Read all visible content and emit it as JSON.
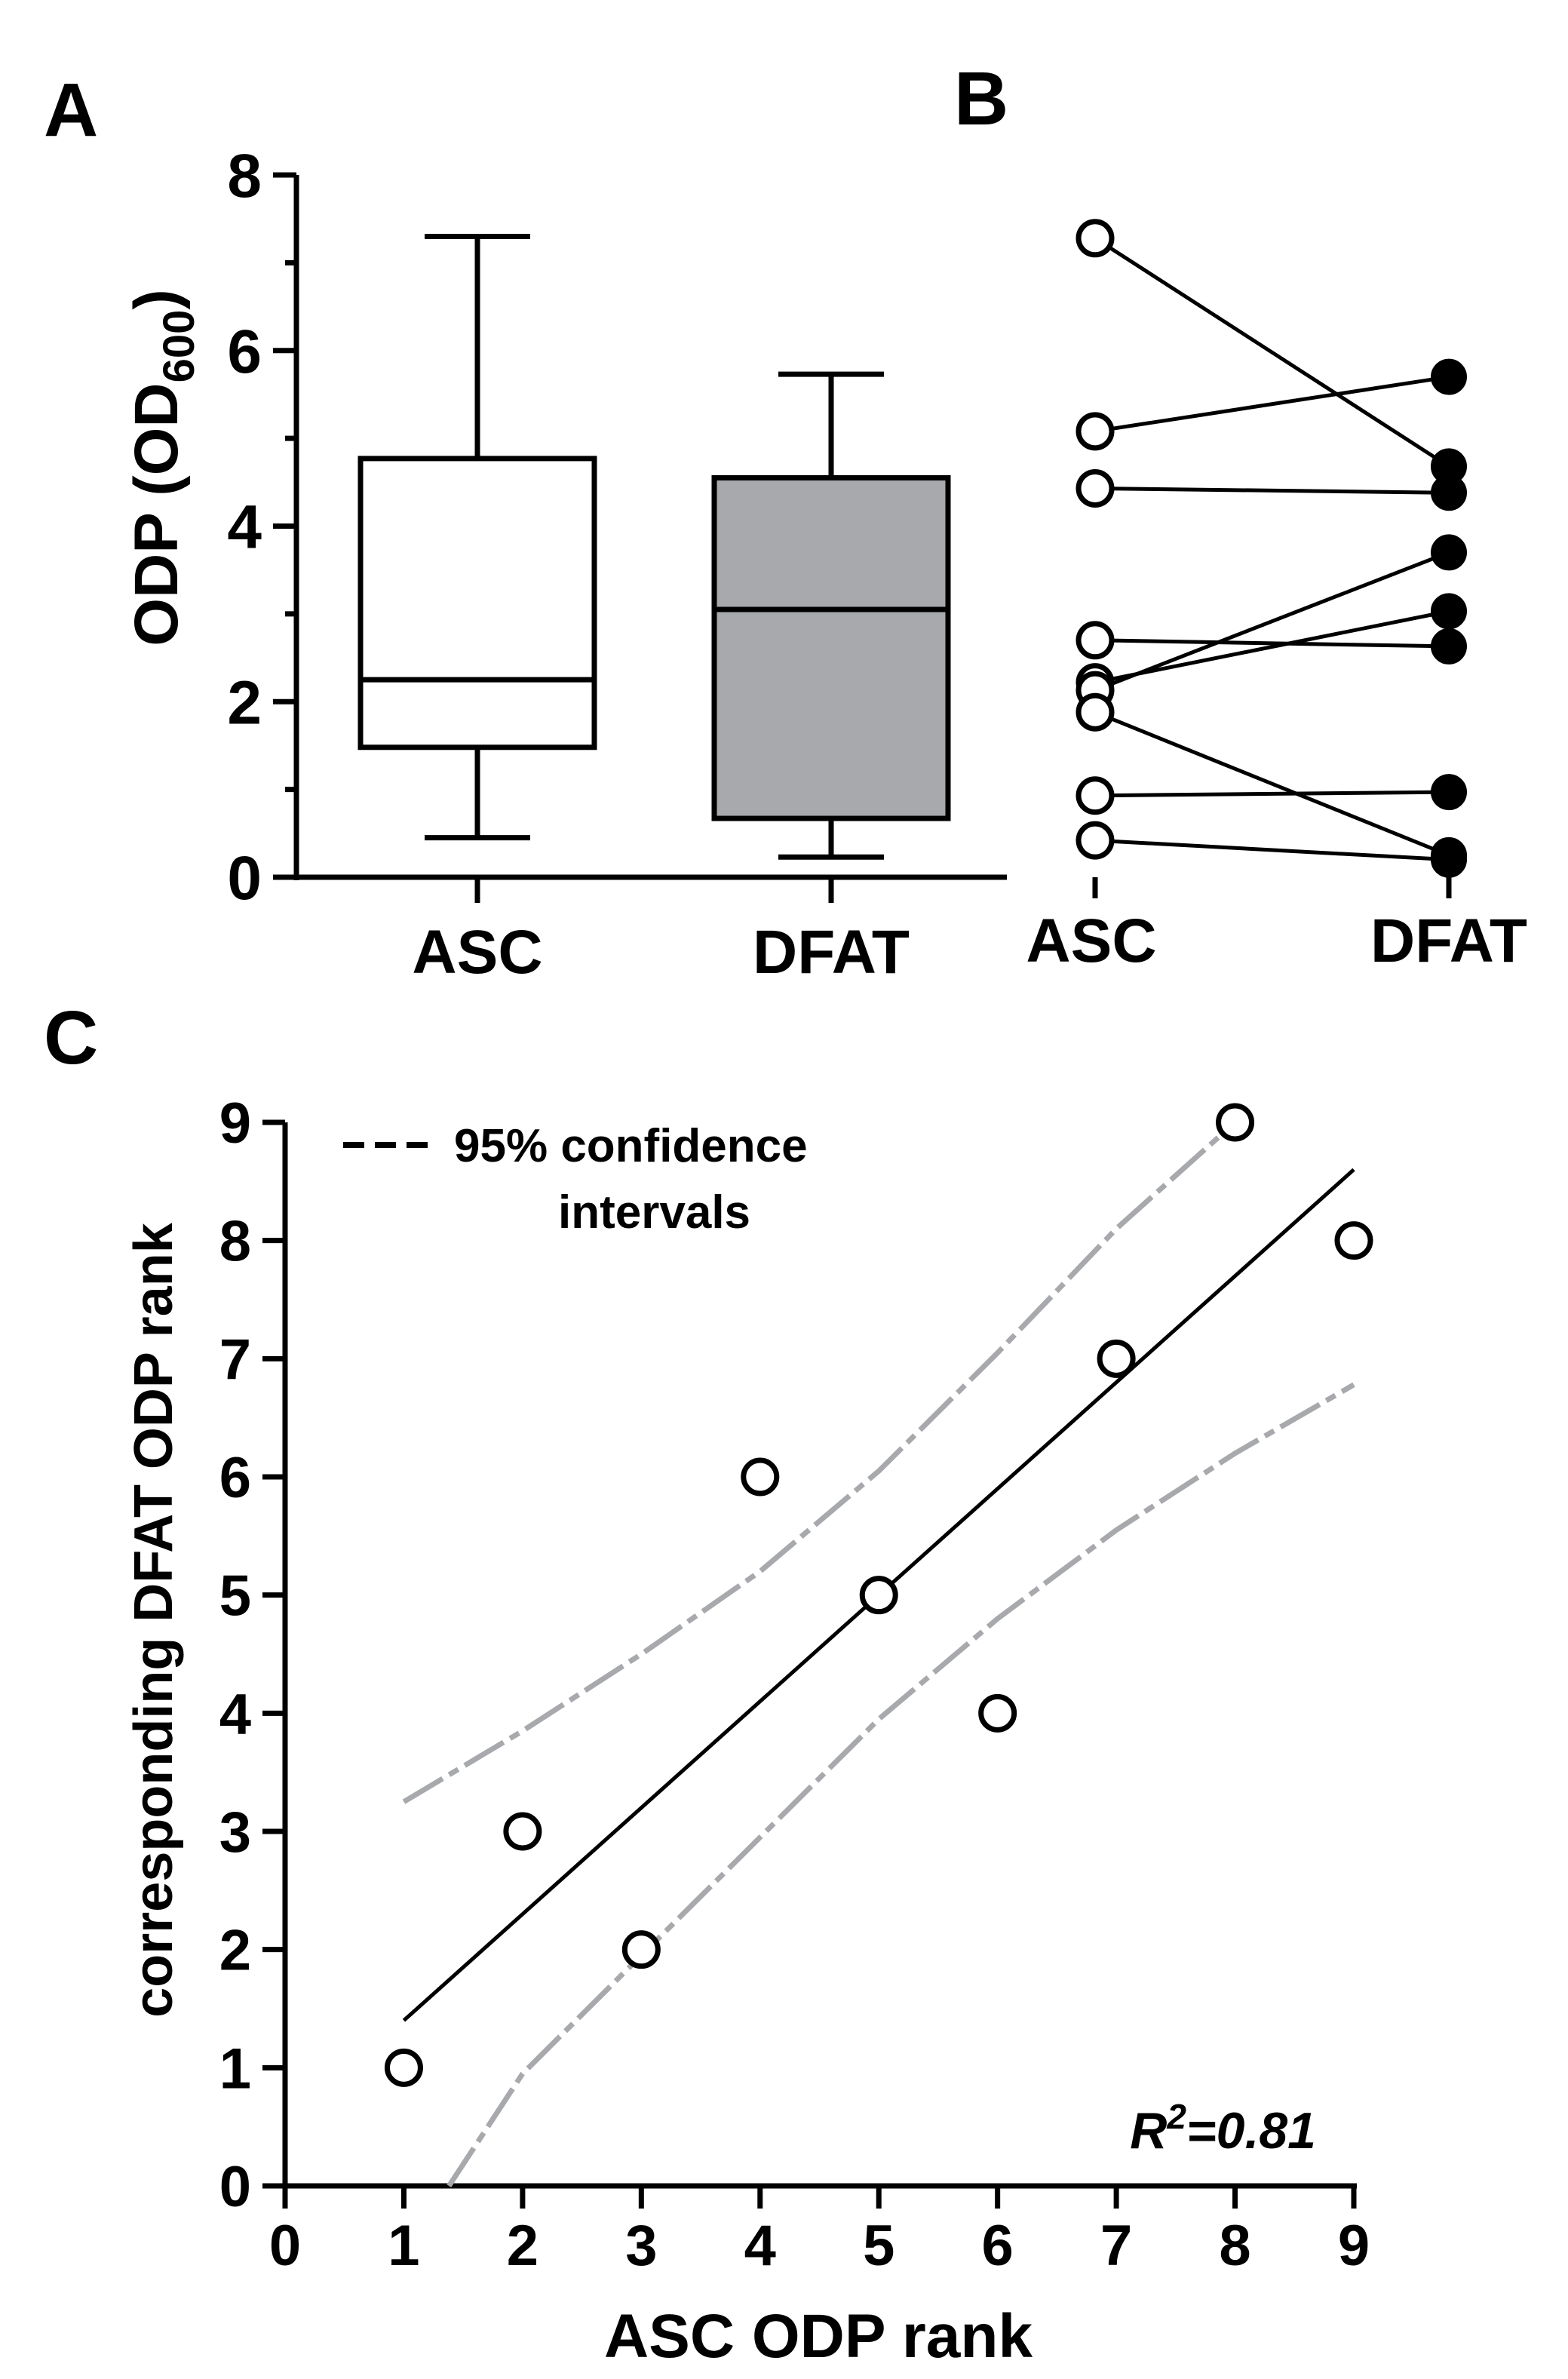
{
  "panels": {
    "a": "A",
    "b": "B",
    "c": "C"
  },
  "chart_data": [
    {
      "panel": "A",
      "type": "box",
      "ylabel": "ODP (OD",
      "ylabel_sub": "600",
      "ylabel_close": ")",
      "ylim": [
        0,
        8
      ],
      "yticks": [
        0,
        2,
        4,
        6,
        8
      ],
      "categories": [
        "ASC",
        "DFAT"
      ],
      "boxes": [
        {
          "name": "ASC",
          "min": 0.45,
          "q1": 1.48,
          "median": 2.25,
          "q3": 4.77,
          "max": 7.3,
          "fill": "#ffffff"
        },
        {
          "name": "DFAT",
          "min": 0.23,
          "q1": 0.67,
          "median": 3.05,
          "q3": 4.55,
          "max": 5.73,
          "fill": "#a7a9ac"
        }
      ]
    },
    {
      "panel": "B",
      "type": "paired-scatter",
      "categories": [
        "ASC",
        "DFAT"
      ],
      "ylim": [
        0,
        8
      ],
      "pairs": [
        [
          7.28,
          4.68
        ],
        [
          5.08,
          5.7
        ],
        [
          4.43,
          4.38
        ],
        [
          2.7,
          2.63
        ],
        [
          2.22,
          3.03
        ],
        [
          2.13,
          3.7
        ],
        [
          1.88,
          0.25
        ],
        [
          0.93,
          0.97
        ],
        [
          0.42,
          0.2
        ]
      ]
    },
    {
      "panel": "C",
      "type": "scatter",
      "xlabel": "ASC ODP rank",
      "ylabel": "corresponding DFAT ODP rank",
      "xlim": [
        0,
        9
      ],
      "ylim": [
        0,
        9
      ],
      "xticks": [
        0,
        1,
        2,
        3,
        4,
        5,
        6,
        7,
        8,
        9
      ],
      "yticks": [
        0,
        1,
        2,
        3,
        4,
        5,
        6,
        7,
        8,
        9
      ],
      "points": [
        {
          "x": 1,
          "y": 1
        },
        {
          "x": 2,
          "y": 3
        },
        {
          "x": 3,
          "y": 2
        },
        {
          "x": 4,
          "y": 6
        },
        {
          "x": 5,
          "y": 5
        },
        {
          "x": 6,
          "y": 4
        },
        {
          "x": 7,
          "y": 7
        },
        {
          "x": 8,
          "y": 9
        },
        {
          "x": 9,
          "y": 8
        }
      ],
      "regression": {
        "x": [
          1,
          9
        ],
        "y": [
          1.4,
          8.6
        ]
      },
      "ci_upper": [
        [
          1,
          3.25
        ],
        [
          2,
          3.85
        ],
        [
          3,
          4.5
        ],
        [
          4,
          5.2
        ],
        [
          5,
          6.05
        ],
        [
          6,
          7.05
        ],
        [
          7,
          8.1
        ],
        [
          8,
          9.0
        ]
      ],
      "ci_lower": [
        [
          1.38,
          0
        ],
        [
          2,
          0.95
        ],
        [
          3,
          1.95
        ],
        [
          4,
          2.95
        ],
        [
          5,
          3.95
        ],
        [
          6,
          4.8
        ],
        [
          7,
          5.55
        ],
        [
          8,
          6.2
        ],
        [
          9,
          6.78
        ]
      ],
      "legend": {
        "line1": "95% confidence",
        "line2": "intervals",
        "position": "top-left"
      },
      "annotation": {
        "r": "R",
        "sup": "2",
        "value": "=0.81"
      },
      "colors": {
        "ci": "#a7a9ac",
        "line": "#000000"
      }
    }
  ]
}
